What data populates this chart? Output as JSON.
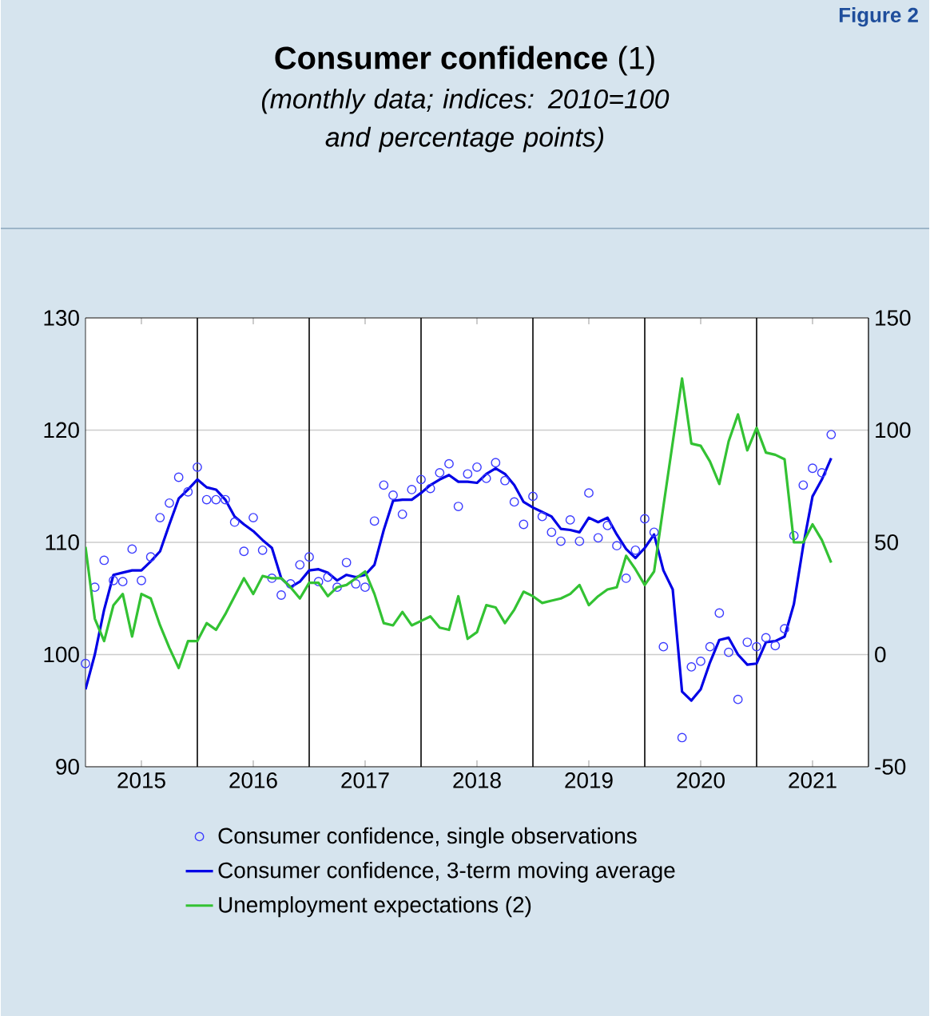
{
  "chart_data": {
    "type": "line",
    "title": "**Consumer confidence** (1)",
    "subtitle": "(monthly data; indices: 2010=100 and percentage points)",
    "annotations": [
      "Figure 2"
    ],
    "x": [
      "2015-01",
      "2015-02",
      "2015-03",
      "2015-04",
      "2015-05",
      "2015-06",
      "2015-07",
      "2015-08",
      "2015-09",
      "2015-10",
      "2015-11",
      "2015-12",
      "2016-01",
      "2016-02",
      "2016-03",
      "2016-04",
      "2016-05",
      "2016-06",
      "2016-07",
      "2016-08",
      "2016-09",
      "2016-10",
      "2016-11",
      "2016-12",
      "2017-01",
      "2017-02",
      "2017-03",
      "2017-04",
      "2017-05",
      "2017-06",
      "2017-07",
      "2017-08",
      "2017-09",
      "2017-10",
      "2017-11",
      "2017-12",
      "2018-01",
      "2018-02",
      "2018-03",
      "2018-04",
      "2018-05",
      "2018-06",
      "2018-07",
      "2018-08",
      "2018-09",
      "2018-10",
      "2018-11",
      "2018-12",
      "2019-01",
      "2019-02",
      "2019-03",
      "2019-04",
      "2019-05",
      "2019-06",
      "2019-07",
      "2019-08",
      "2019-09",
      "2019-10",
      "2019-11",
      "2019-12",
      "2020-01",
      "2020-02",
      "2020-03",
      "2020-04",
      "2020-05",
      "2020-06",
      "2020-07",
      "2020-08",
      "2020-09",
      "2020-10",
      "2020-11",
      "2020-12",
      "2021-01",
      "2021-02",
      "2021-03",
      "2021-04",
      "2021-05",
      "2021-06",
      "2021-07",
      "2021-08",
      "2021-09"
    ],
    "series": [
      {
        "name": "Consumer confidence, single observations",
        "type": "scatter",
        "marker": "circle",
        "color": "#3c3cff",
        "values": [
          99.2,
          106.0,
          108.4,
          106.6,
          106.5,
          109.4,
          106.6,
          108.7,
          112.2,
          113.5,
          115.8,
          114.5,
          116.7,
          113.8,
          113.8,
          113.8,
          111.8,
          109.2,
          112.2,
          109.3,
          106.8,
          105.3,
          106.3,
          108.0,
          108.7,
          106.5,
          106.9,
          106.0,
          108.2,
          106.3,
          106.0,
          111.9,
          115.1,
          114.2,
          112.5,
          114.7,
          115.6,
          114.8,
          116.2,
          117.0,
          113.2,
          116.1,
          116.7,
          115.7,
          117.1,
          115.5,
          113.6,
          111.6,
          114.1,
          112.3,
          110.9,
          110.1,
          112.0,
          110.1,
          114.4,
          110.4,
          111.5,
          109.7,
          106.8,
          109.3,
          112.1,
          110.9,
          100.7,
          null,
          92.6,
          98.9,
          99.4,
          100.7,
          103.7,
          100.2,
          96.0,
          101.1,
          100.7,
          101.5,
          100.8,
          102.3,
          110.6,
          115.1,
          116.6,
          116.2,
          119.6
        ]
      },
      {
        "name": "Consumer confidence, 3-term moving average",
        "type": "line",
        "color": "#0000e6",
        "values": [
          96.9,
          100.0,
          104.0,
          107.1,
          107.3,
          107.5,
          107.5,
          108.3,
          109.2,
          111.6,
          113.9,
          114.7,
          115.6,
          114.9,
          114.7,
          113.8,
          112.3,
          111.6,
          111.0,
          110.2,
          109.5,
          106.8,
          106.0,
          106.5,
          107.5,
          107.6,
          107.3,
          106.6,
          107.1,
          106.9,
          107.1,
          108.0,
          111.1,
          113.7,
          113.8,
          113.8,
          114.4,
          115.1,
          115.6,
          116.0,
          115.4,
          115.4,
          115.3,
          116.1,
          116.6,
          116.1,
          115.1,
          113.6,
          113.1,
          112.7,
          112.3,
          111.2,
          111.1,
          110.9,
          112.2,
          111.8,
          112.2,
          110.7,
          109.4,
          108.6,
          109.5,
          110.7,
          107.5,
          105.8,
          96.7,
          95.9,
          96.9,
          99.3,
          101.3,
          101.5,
          100.0,
          99.1,
          99.2,
          101.1,
          101.2,
          101.6,
          104.5,
          109.7,
          114.1,
          115.6,
          117.5
        ]
      },
      {
        "name": "Unemployment expectations (2)",
        "type": "line",
        "axis": "y2",
        "color": "#33c233",
        "values": [
          48,
          16,
          6,
          22,
          27,
          8,
          27,
          25,
          13,
          3,
          -6,
          6,
          6,
          14,
          11,
          18,
          26,
          34,
          27,
          35,
          34,
          34,
          30,
          25,
          32,
          32,
          26,
          30,
          31,
          34,
          37,
          27,
          14,
          13,
          19,
          13,
          15,
          17,
          12,
          11,
          26,
          7,
          10,
          22,
          21,
          14,
          20,
          28,
          26,
          23,
          24,
          25,
          27,
          31,
          22,
          26,
          29,
          30,
          44,
          38,
          31,
          37,
          66,
          null,
          123,
          94,
          93,
          86,
          76,
          95,
          107,
          91,
          101,
          90,
          89,
          87,
          50,
          50,
          58,
          51,
          41
        ]
      }
    ],
    "xlim": [
      "2015-01",
      "2022-01"
    ],
    "xticks": [
      {
        "value": "2015-07",
        "label": "2015"
      },
      {
        "value": "2016-07",
        "label": "2016"
      },
      {
        "value": "2017-07",
        "label": "2017"
      },
      {
        "value": "2018-07",
        "label": "2018"
      },
      {
        "value": "2019-07",
        "label": "2019"
      },
      {
        "value": "2020-07",
        "label": "2020"
      },
      {
        "value": "2021-07",
        "label": "2021"
      }
    ],
    "ylim": [
      90,
      130
    ],
    "yticks": [
      90,
      100,
      110,
      120,
      130
    ],
    "y2lim": [
      -50,
      150
    ],
    "y2ticks": [
      -50,
      0,
      50,
      100,
      150
    ],
    "ref_lines": [
      {
        "axis": "x",
        "value": "2016-01",
        "color": "#000000"
      },
      {
        "axis": "x",
        "value": "2017-01",
        "color": "#000000"
      },
      {
        "axis": "x",
        "value": "2018-01",
        "color": "#000000"
      },
      {
        "axis": "x",
        "value": "2019-01",
        "color": "#000000"
      },
      {
        "axis": "x",
        "value": "2020-01",
        "color": "#000000"
      },
      {
        "axis": "x",
        "value": "2021-01",
        "color": "#000000"
      }
    ],
    "grid": "y",
    "legend": "bottom"
  }
}
